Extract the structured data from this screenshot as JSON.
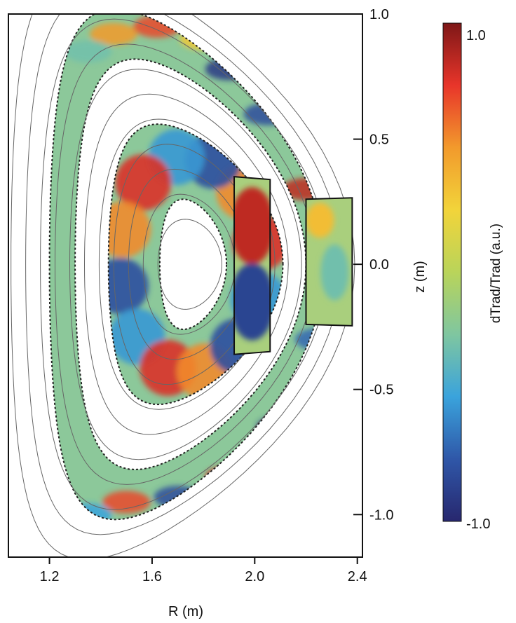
{
  "chart_data": {
    "type": "heatmap",
    "title": "",
    "xlabel": "R (m)",
    "ylabel": "z (m)",
    "xlim": [
      1.04,
      2.42
    ],
    "ylim": [
      -1.17,
      1.0
    ],
    "x_ticks": [
      "1.2",
      "1.6",
      "2.0",
      "2.4"
    ],
    "x_tick_values": [
      1.2,
      1.6,
      2.0,
      2.4
    ],
    "y_ticks": [
      "1.0",
      "0.5",
      "0.0",
      "-0.5",
      "-1.0"
    ],
    "y_tick_values": [
      1.0,
      0.5,
      0.0,
      -0.5,
      -1.0
    ],
    "y_axis_side": "right",
    "colorbar": {
      "label": "dTrad/Trad (a.u.)",
      "max_label": "1.0",
      "min_label": "-1.0",
      "range": [
        -1.0,
        1.0
      ],
      "colormap": [
        "#27276e",
        "#2f57a8",
        "#3aa3dc",
        "#7fc6a0",
        "#b9d45a",
        "#f2d43a",
        "#f29a2c",
        "#e8352a",
        "#7e1717"
      ]
    },
    "flux_center": {
      "R": 1.75,
      "z": 0.0
    },
    "core_island": {
      "R_inner": [
        1.63,
        1.89
      ],
      "R_outer": [
        1.43,
        2.11
      ],
      "z_half": [
        0.26,
        0.56
      ],
      "mode_count": 3
    },
    "edge_band": {
      "R_inner": [
        1.3,
        2.2
      ],
      "R_outer": [
        1.2,
        2.27
      ],
      "z_half": [
        0.82,
        1.02
      ]
    },
    "measurement_window_1": {
      "R": [
        1.92,
        2.06
      ],
      "z": [
        -0.36,
        0.35
      ]
    },
    "measurement_window_2": {
      "R": [
        2.2,
        2.38
      ],
      "z": [
        -0.24,
        0.26
      ]
    }
  }
}
